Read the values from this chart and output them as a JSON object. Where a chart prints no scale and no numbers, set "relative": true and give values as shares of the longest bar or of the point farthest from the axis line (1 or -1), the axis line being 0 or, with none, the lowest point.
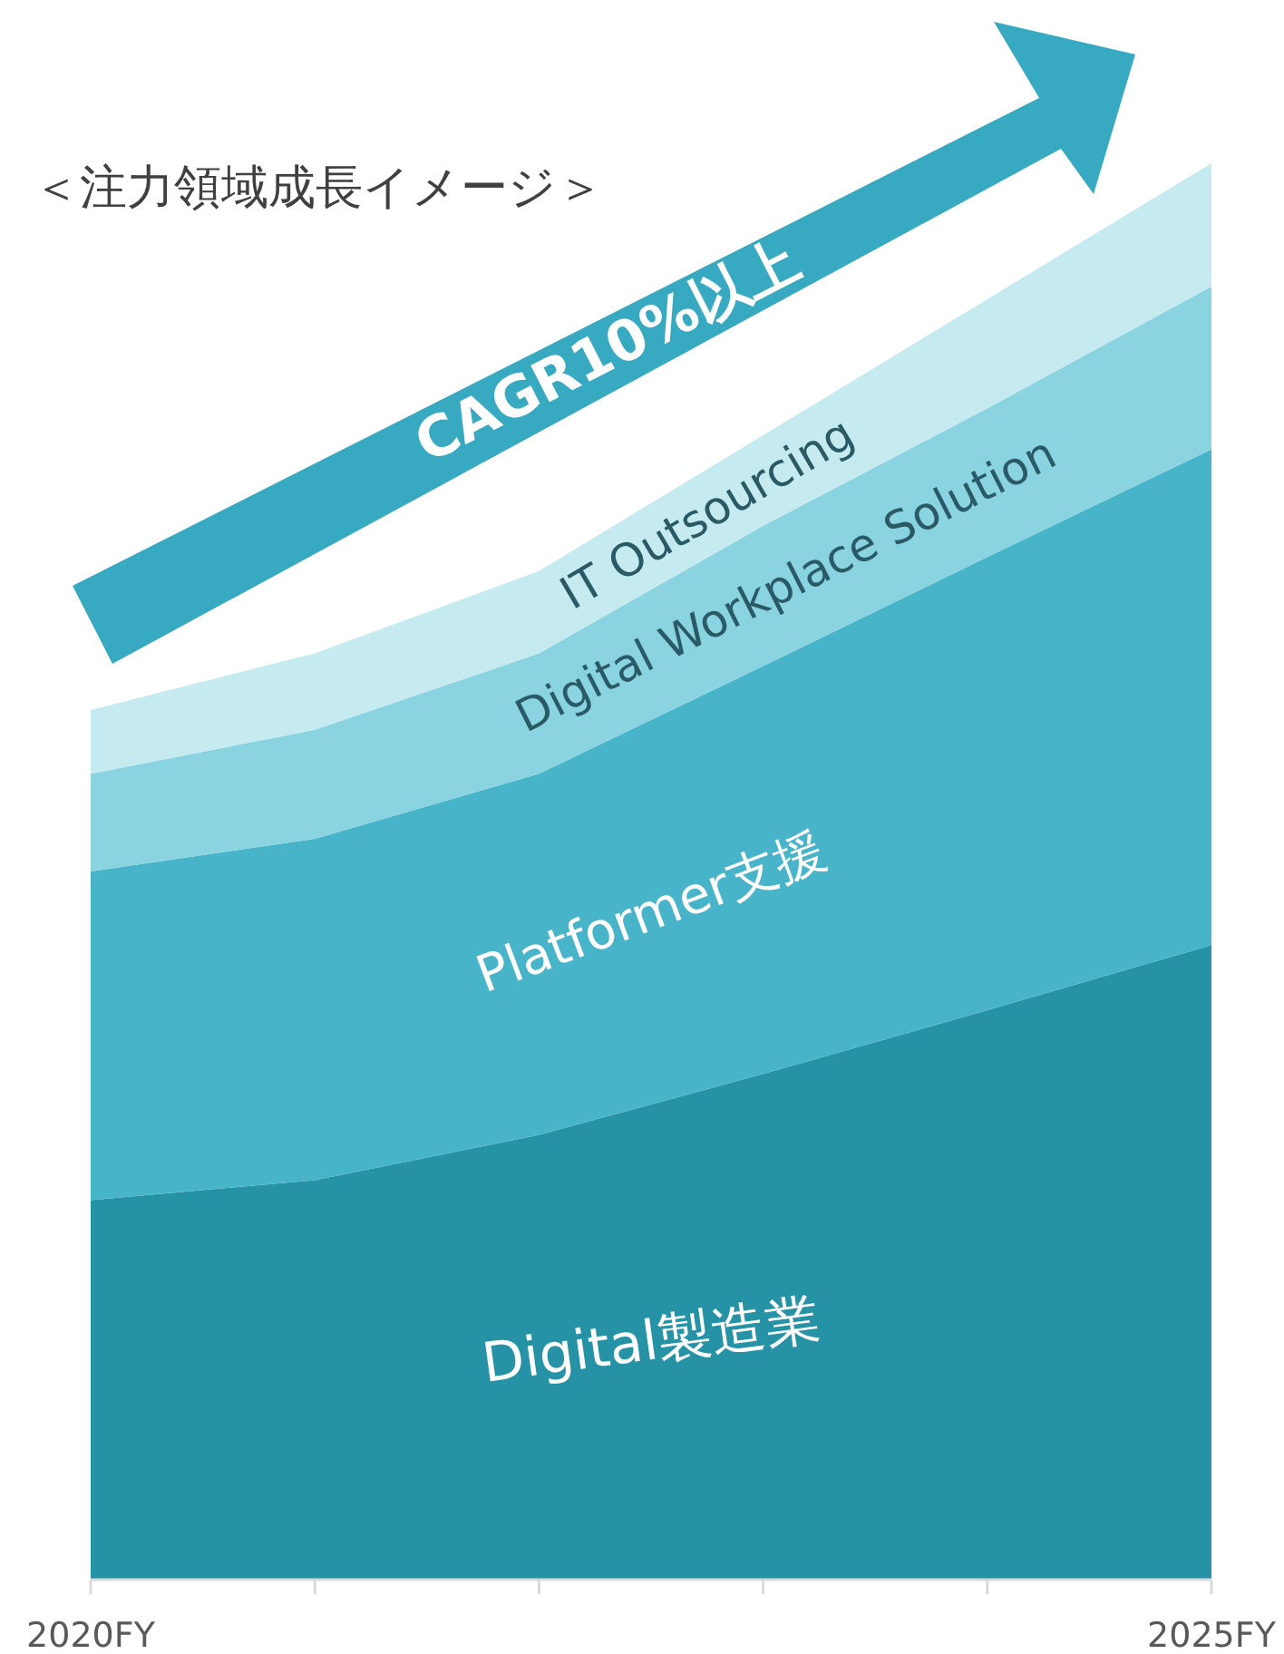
{
  "chart_data": {
    "type": "area",
    "stacked": true,
    "relative": true,
    "title": "＜注力領域成長イメージ＞",
    "categories": [
      "2020FY",
      null,
      null,
      null,
      null,
      "2025FY"
    ],
    "series": [
      {
        "name": "Digital製造業",
        "color": "#2592a6",
        "values": [
          0.268,
          0.282,
          0.314,
          0.357,
          0.402,
          0.448
        ]
      },
      {
        "name": "Platformer支援",
        "color": "#47b4c9",
        "values": [
          0.232,
          0.241,
          0.255,
          0.288,
          0.32,
          0.35
        ]
      },
      {
        "name": "Digital Workplace Solution",
        "color": "#8ad4e2",
        "values": [
          0.069,
          0.077,
          0.085,
          0.099,
          0.105,
          0.115
        ]
      },
      {
        "name": "IT Outsourcing",
        "color": "#c5eaf0",
        "values": [
          0.045,
          0.054,
          0.058,
          0.064,
          0.077,
          0.087
        ]
      }
    ],
    "annotations": [
      "CAGR10%以上"
    ]
  }
}
